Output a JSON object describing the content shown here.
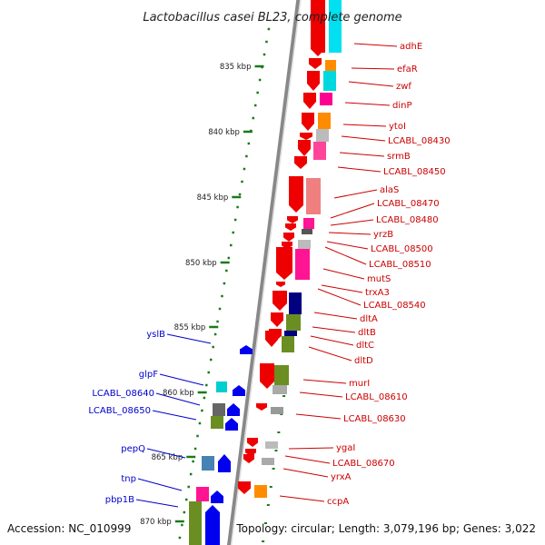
{
  "title": "Lactobacillus casei BL23, complete genome",
  "footer": {
    "accession": "Accession: NC_010999",
    "summary": "Topology: circular; Length: 3,079,196 bp; Genes: 3,022"
  },
  "colors": {
    "forward_label": "#cc0000",
    "reverse_label": "#0000cc",
    "backbone": "#888888",
    "tick": "#1a7a1a",
    "forward_gene": "#ee0000",
    "reverse_gene": "#0000ee"
  },
  "kbp_ticks": [
    {
      "kbp": 835,
      "label": "835 kbp"
    },
    {
      "kbp": 840,
      "label": "840 kbp"
    },
    {
      "kbp": 845,
      "label": "845 kbp"
    },
    {
      "kbp": 850,
      "label": "850 kbp"
    },
    {
      "kbp": 855,
      "label": "855 kbp"
    },
    {
      "kbp": 860,
      "label": "860 kbp"
    },
    {
      "kbp": 865,
      "label": "865 kbp"
    },
    {
      "kbp": 870,
      "label": "870 kbp"
    }
  ],
  "right_genes": [
    {
      "name": "adhE"
    },
    {
      "name": "efaR"
    },
    {
      "name": "zwf"
    },
    {
      "name": "dinP"
    },
    {
      "name": "ytoI"
    },
    {
      "name": "LCABL_08430"
    },
    {
      "name": "srmB"
    },
    {
      "name": "LCABL_08450"
    },
    {
      "name": "alaS"
    },
    {
      "name": "LCABL_08470"
    },
    {
      "name": "LCABL_08480"
    },
    {
      "name": "yrzB"
    },
    {
      "name": "LCABL_08500"
    },
    {
      "name": "LCABL_08510"
    },
    {
      "name": "mutS"
    },
    {
      "name": "trxA3"
    },
    {
      "name": "LCABL_08540"
    },
    {
      "name": "dltA"
    },
    {
      "name": "dltB"
    },
    {
      "name": "dltC"
    },
    {
      "name": "dltD"
    },
    {
      "name": "murI"
    },
    {
      "name": "LCABL_08610"
    },
    {
      "name": "LCABL_08630"
    },
    {
      "name": "ygaI"
    },
    {
      "name": "LCABL_08670"
    },
    {
      "name": "yrxA"
    },
    {
      "name": "ccpA"
    }
  ],
  "left_genes": [
    {
      "name": "yslB"
    },
    {
      "name": "glpF"
    },
    {
      "name": "LCABL_08640"
    },
    {
      "name": "LCABL_08650"
    },
    {
      "name": "pepQ"
    },
    {
      "name": "tnp"
    },
    {
      "name": "pbp1B"
    }
  ]
}
